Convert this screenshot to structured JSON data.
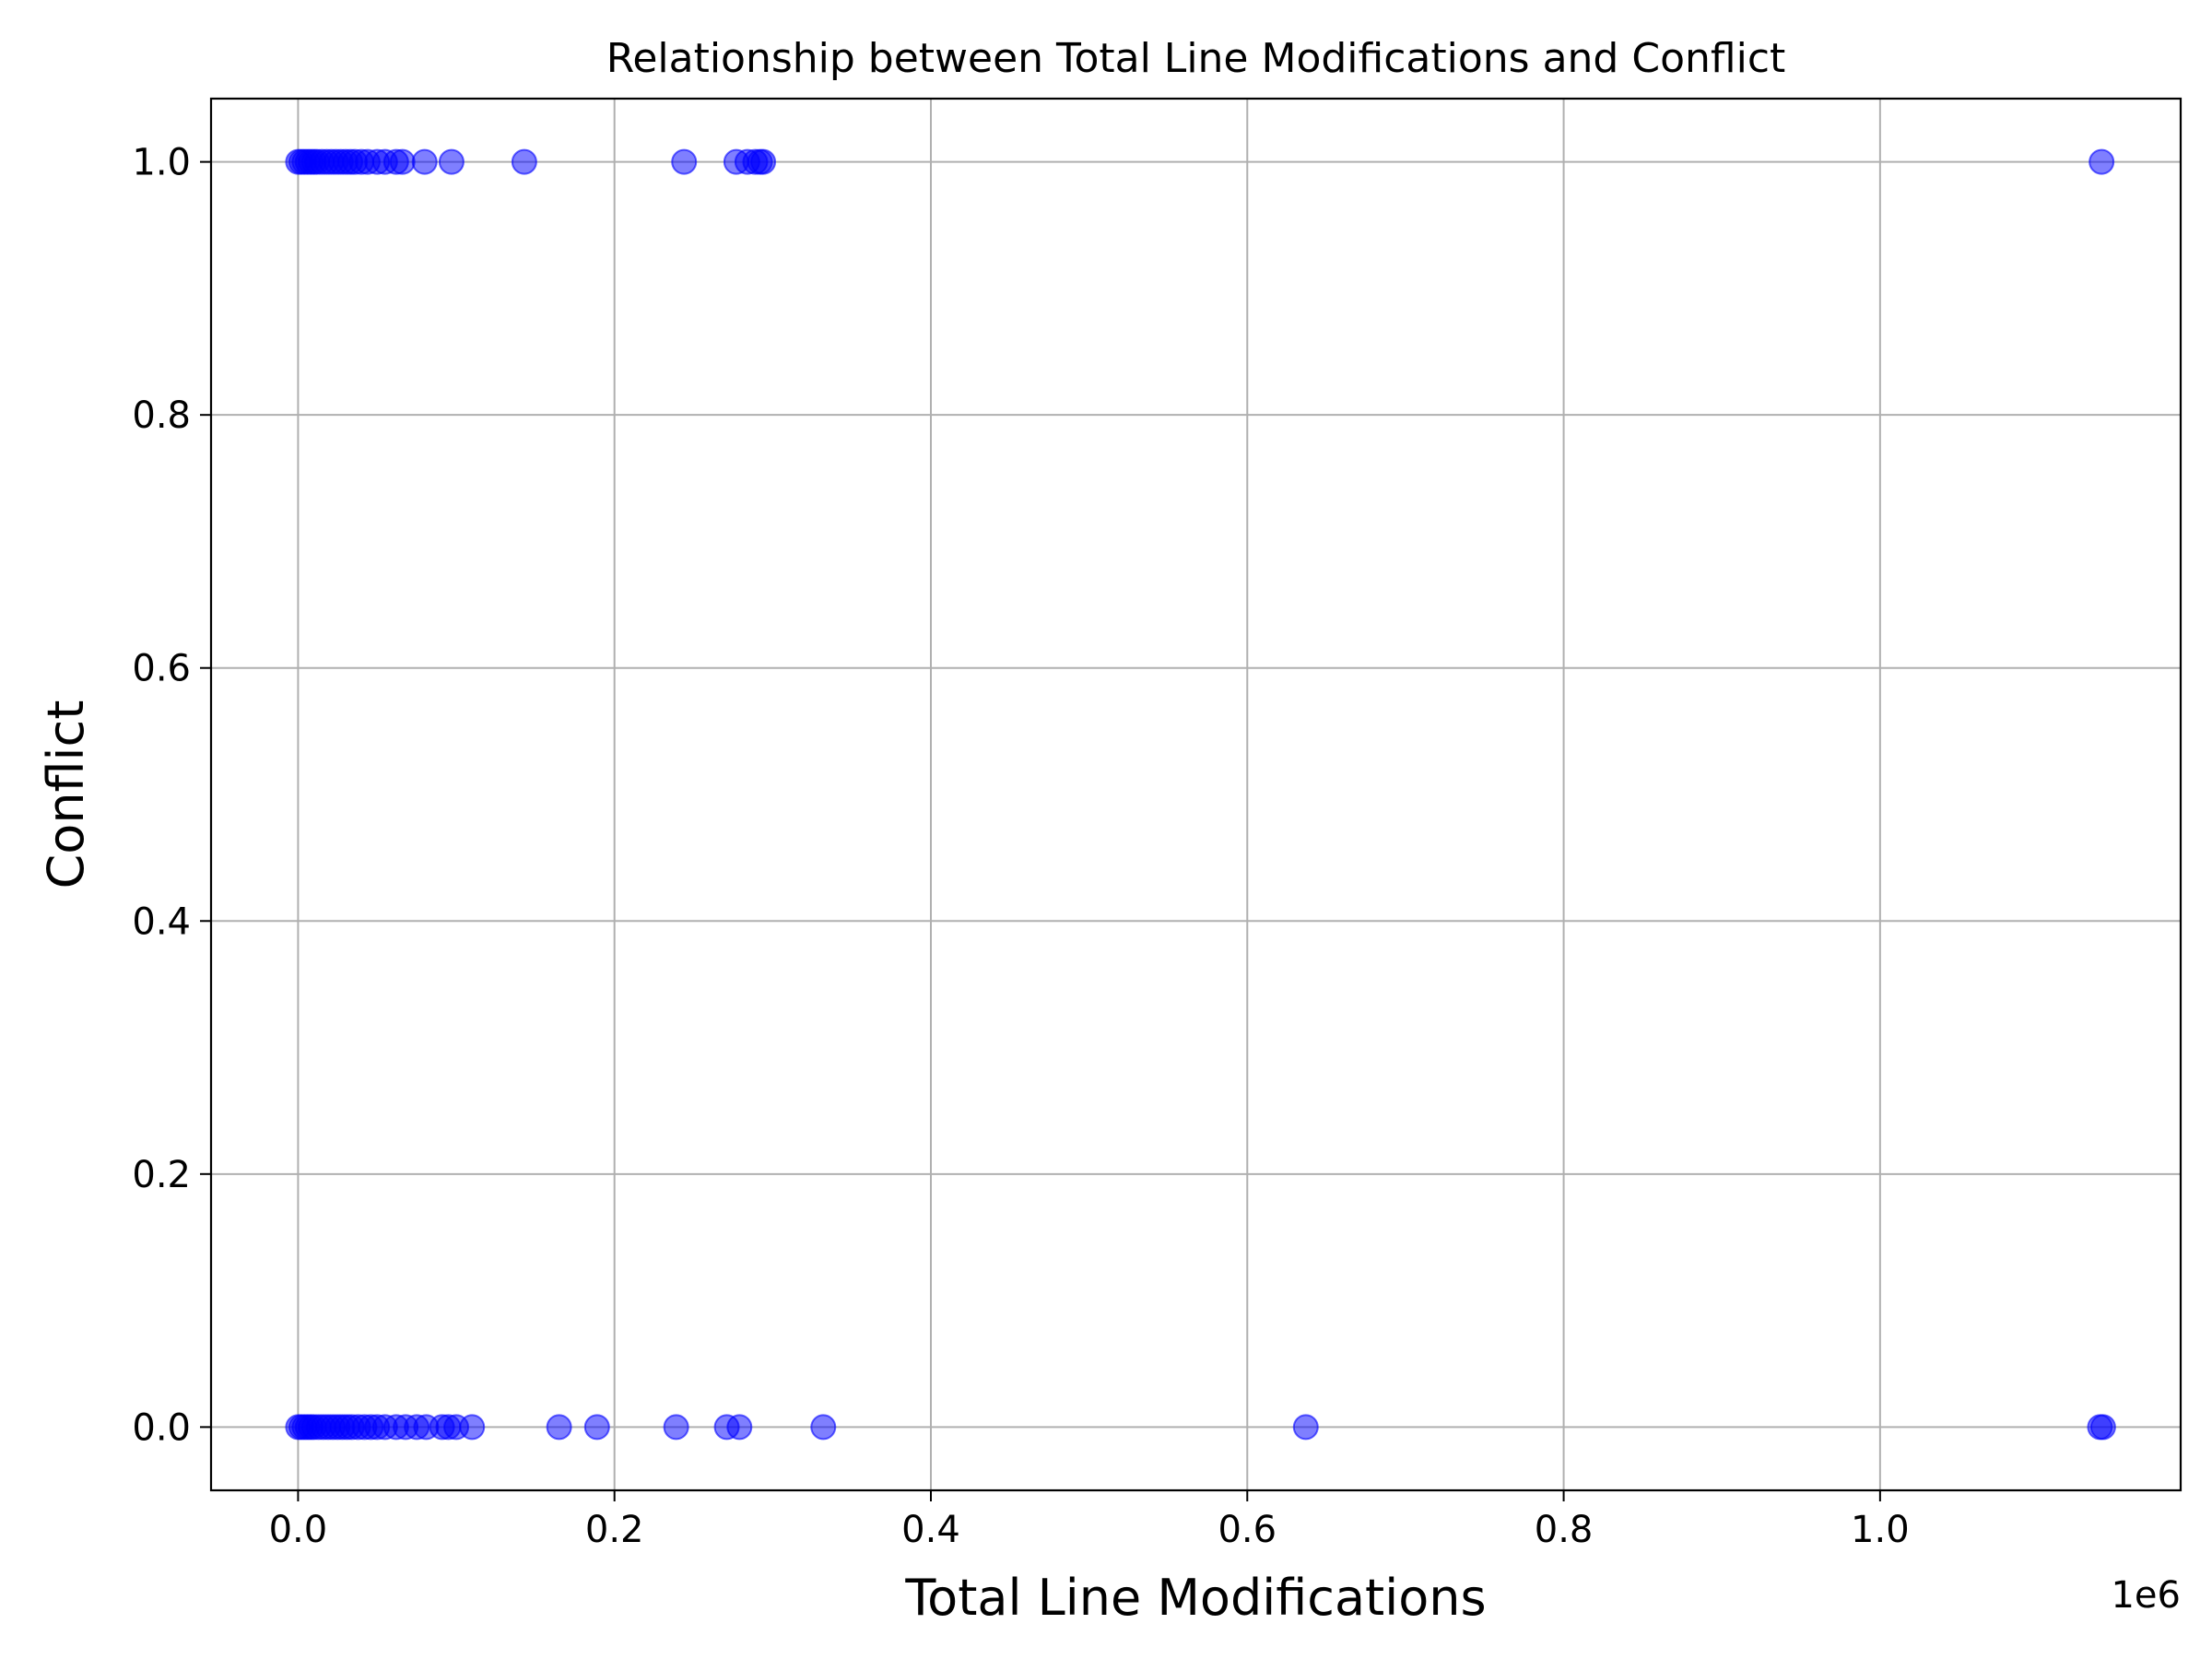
{
  "chart_data": {
    "type": "scatter",
    "title": "Relationship between Total Line Modifications and Conflict",
    "xlabel": "Total Line Modifications",
    "ylabel": "Conflict",
    "x_offset_label": "1e6",
    "xlim": [
      -0.055,
      1.19
    ],
    "ylim": [
      -0.05,
      1.05
    ],
    "xticks": [
      0.0,
      0.2,
      0.4,
      0.6,
      0.8,
      1.0
    ],
    "xtick_labels": [
      "0.0",
      "0.2",
      "0.4",
      "0.6",
      "0.8",
      "1.0"
    ],
    "yticks": [
      0.0,
      0.2,
      0.4,
      0.6,
      0.8,
      1.0
    ],
    "ytick_labels": [
      "0.0",
      "0.2",
      "0.4",
      "0.6",
      "0.8",
      "1.0"
    ],
    "grid": true,
    "marker_color": "#0000ff",
    "marker_alpha": 0.5,
    "points": [
      {
        "x": 0.0,
        "y": 1
      },
      {
        "x": 0.002,
        "y": 1
      },
      {
        "x": 0.004,
        "y": 1
      },
      {
        "x": 0.006,
        "y": 1
      },
      {
        "x": 0.008,
        "y": 1
      },
      {
        "x": 0.01,
        "y": 1
      },
      {
        "x": 0.012,
        "y": 1
      },
      {
        "x": 0.015,
        "y": 1
      },
      {
        "x": 0.018,
        "y": 1
      },
      {
        "x": 0.021,
        "y": 1
      },
      {
        "x": 0.024,
        "y": 1
      },
      {
        "x": 0.027,
        "y": 1
      },
      {
        "x": 0.03,
        "y": 1
      },
      {
        "x": 0.033,
        "y": 1
      },
      {
        "x": 0.036,
        "y": 1
      },
      {
        "x": 0.04,
        "y": 1
      },
      {
        "x": 0.044,
        "y": 1
      },
      {
        "x": 0.05,
        "y": 1
      },
      {
        "x": 0.055,
        "y": 1
      },
      {
        "x": 0.062,
        "y": 1
      },
      {
        "x": 0.066,
        "y": 1
      },
      {
        "x": 0.08,
        "y": 1
      },
      {
        "x": 0.097,
        "y": 1
      },
      {
        "x": 0.143,
        "y": 1
      },
      {
        "x": 0.244,
        "y": 1
      },
      {
        "x": 0.277,
        "y": 1
      },
      {
        "x": 0.284,
        "y": 1
      },
      {
        "x": 0.289,
        "y": 1
      },
      {
        "x": 0.292,
        "y": 1
      },
      {
        "x": 0.294,
        "y": 1
      },
      {
        "x": 1.14,
        "y": 1
      },
      {
        "x": 0.0,
        "y": 0
      },
      {
        "x": 0.002,
        "y": 0
      },
      {
        "x": 0.004,
        "y": 0
      },
      {
        "x": 0.006,
        "y": 0
      },
      {
        "x": 0.008,
        "y": 0
      },
      {
        "x": 0.01,
        "y": 0
      },
      {
        "x": 0.013,
        "y": 0
      },
      {
        "x": 0.016,
        "y": 0
      },
      {
        "x": 0.019,
        "y": 0
      },
      {
        "x": 0.022,
        "y": 0
      },
      {
        "x": 0.025,
        "y": 0
      },
      {
        "x": 0.028,
        "y": 0
      },
      {
        "x": 0.031,
        "y": 0
      },
      {
        "x": 0.034,
        "y": 0
      },
      {
        "x": 0.038,
        "y": 0
      },
      {
        "x": 0.042,
        "y": 0
      },
      {
        "x": 0.046,
        "y": 0
      },
      {
        "x": 0.05,
        "y": 0
      },
      {
        "x": 0.055,
        "y": 0
      },
      {
        "x": 0.062,
        "y": 0
      },
      {
        "x": 0.068,
        "y": 0
      },
      {
        "x": 0.075,
        "y": 0
      },
      {
        "x": 0.081,
        "y": 0
      },
      {
        "x": 0.091,
        "y": 0
      },
      {
        "x": 0.095,
        "y": 0
      },
      {
        "x": 0.1,
        "y": 0
      },
      {
        "x": 0.11,
        "y": 0
      },
      {
        "x": 0.165,
        "y": 0
      },
      {
        "x": 0.189,
        "y": 0
      },
      {
        "x": 0.239,
        "y": 0
      },
      {
        "x": 0.271,
        "y": 0
      },
      {
        "x": 0.279,
        "y": 0
      },
      {
        "x": 0.332,
        "y": 0
      },
      {
        "x": 0.637,
        "y": 0
      },
      {
        "x": 1.139,
        "y": 0
      },
      {
        "x": 1.141,
        "y": 0
      }
    ]
  }
}
